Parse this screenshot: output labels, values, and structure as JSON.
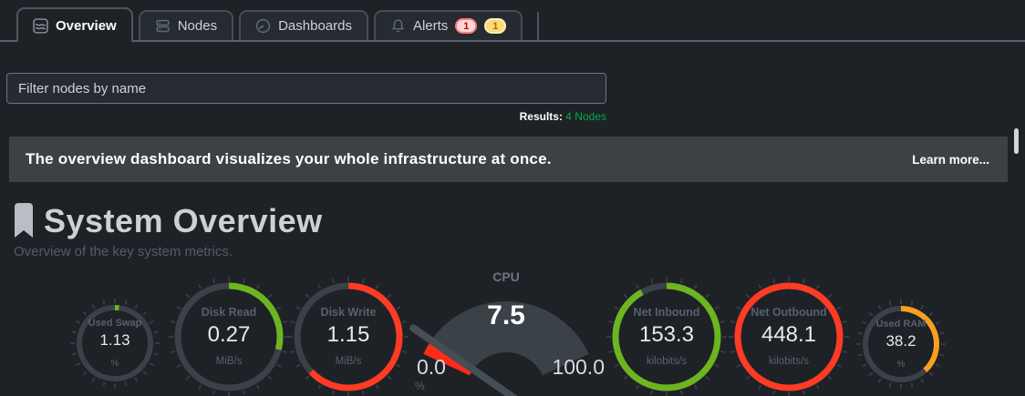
{
  "tabs": [
    {
      "label": "Overview",
      "icon": "area-chart-icon",
      "active": true
    },
    {
      "label": "Nodes",
      "icon": "nodes-icon",
      "active": false
    },
    {
      "label": "Dashboards",
      "icon": "gauge-icon",
      "active": false
    },
    {
      "label": "Alerts",
      "icon": "bell-icon",
      "active": false,
      "badges": [
        {
          "value": "1",
          "severity": "critical"
        },
        {
          "value": "1",
          "severity": "warning"
        }
      ]
    }
  ],
  "filter": {
    "placeholder": "Filter nodes by name",
    "value": ""
  },
  "results": {
    "label": "Results:",
    "value": "4 Nodes"
  },
  "banner": {
    "message": "The overview dashboard visualizes your whole infrastructure at once.",
    "link": "Learn more..."
  },
  "section": {
    "title": "System Overview",
    "subtitle": "Overview of the key system metrics."
  },
  "colors": {
    "green": "#6cb521",
    "red": "#ff3b24",
    "orange": "#f7a01d",
    "results_green": "#00ab44",
    "ring_bg": "#3a4148",
    "tick": "#343c44",
    "dial_fan": "#3a4147",
    "needle": "#454d55"
  },
  "chart_data": [
    {
      "type": "gauge",
      "style": "ring",
      "title": "Used Swap",
      "value": 1.13,
      "value_display": "1.13",
      "unit": "%",
      "fraction": 0.018,
      "color": "#6cb521",
      "size": "small"
    },
    {
      "type": "gauge",
      "style": "ring",
      "title": "Disk Read",
      "value": 0.27,
      "value_display": "0.27",
      "unit": "MiB/s",
      "fraction": 0.29,
      "color": "#6cb521",
      "size": "large"
    },
    {
      "type": "gauge",
      "style": "ring",
      "title": "Disk Write",
      "value": 1.15,
      "value_display": "1.15",
      "unit": "MiB/s",
      "fraction": 0.63,
      "color": "#ff3b24",
      "size": "large"
    },
    {
      "type": "gauge",
      "style": "dial",
      "title": "CPU",
      "value": 7.5,
      "value_display": "7.5",
      "unit": "%",
      "fraction": 0.075,
      "color": "#ff2b18",
      "min": 0.0,
      "max": 100.0,
      "min_label": "0.0",
      "max_label": "100.0"
    },
    {
      "type": "gauge",
      "style": "ring",
      "title": "Net Inbound",
      "value": 153.3,
      "value_display": "153.3",
      "unit": "kilobits/s",
      "fraction": 0.92,
      "color": "#6cb521",
      "size": "large"
    },
    {
      "type": "gauge",
      "style": "ring",
      "title": "Net Outbound",
      "value": 448.1,
      "value_display": "448.1",
      "unit": "kilobits/s",
      "fraction": 1.0,
      "color": "#ff3b24",
      "size": "large"
    },
    {
      "type": "gauge",
      "style": "ring",
      "title": "Used RAM",
      "value": 38.2,
      "value_display": "38.2",
      "unit": "%",
      "fraction": 0.382,
      "color": "#f7a01d",
      "size": "small"
    }
  ]
}
